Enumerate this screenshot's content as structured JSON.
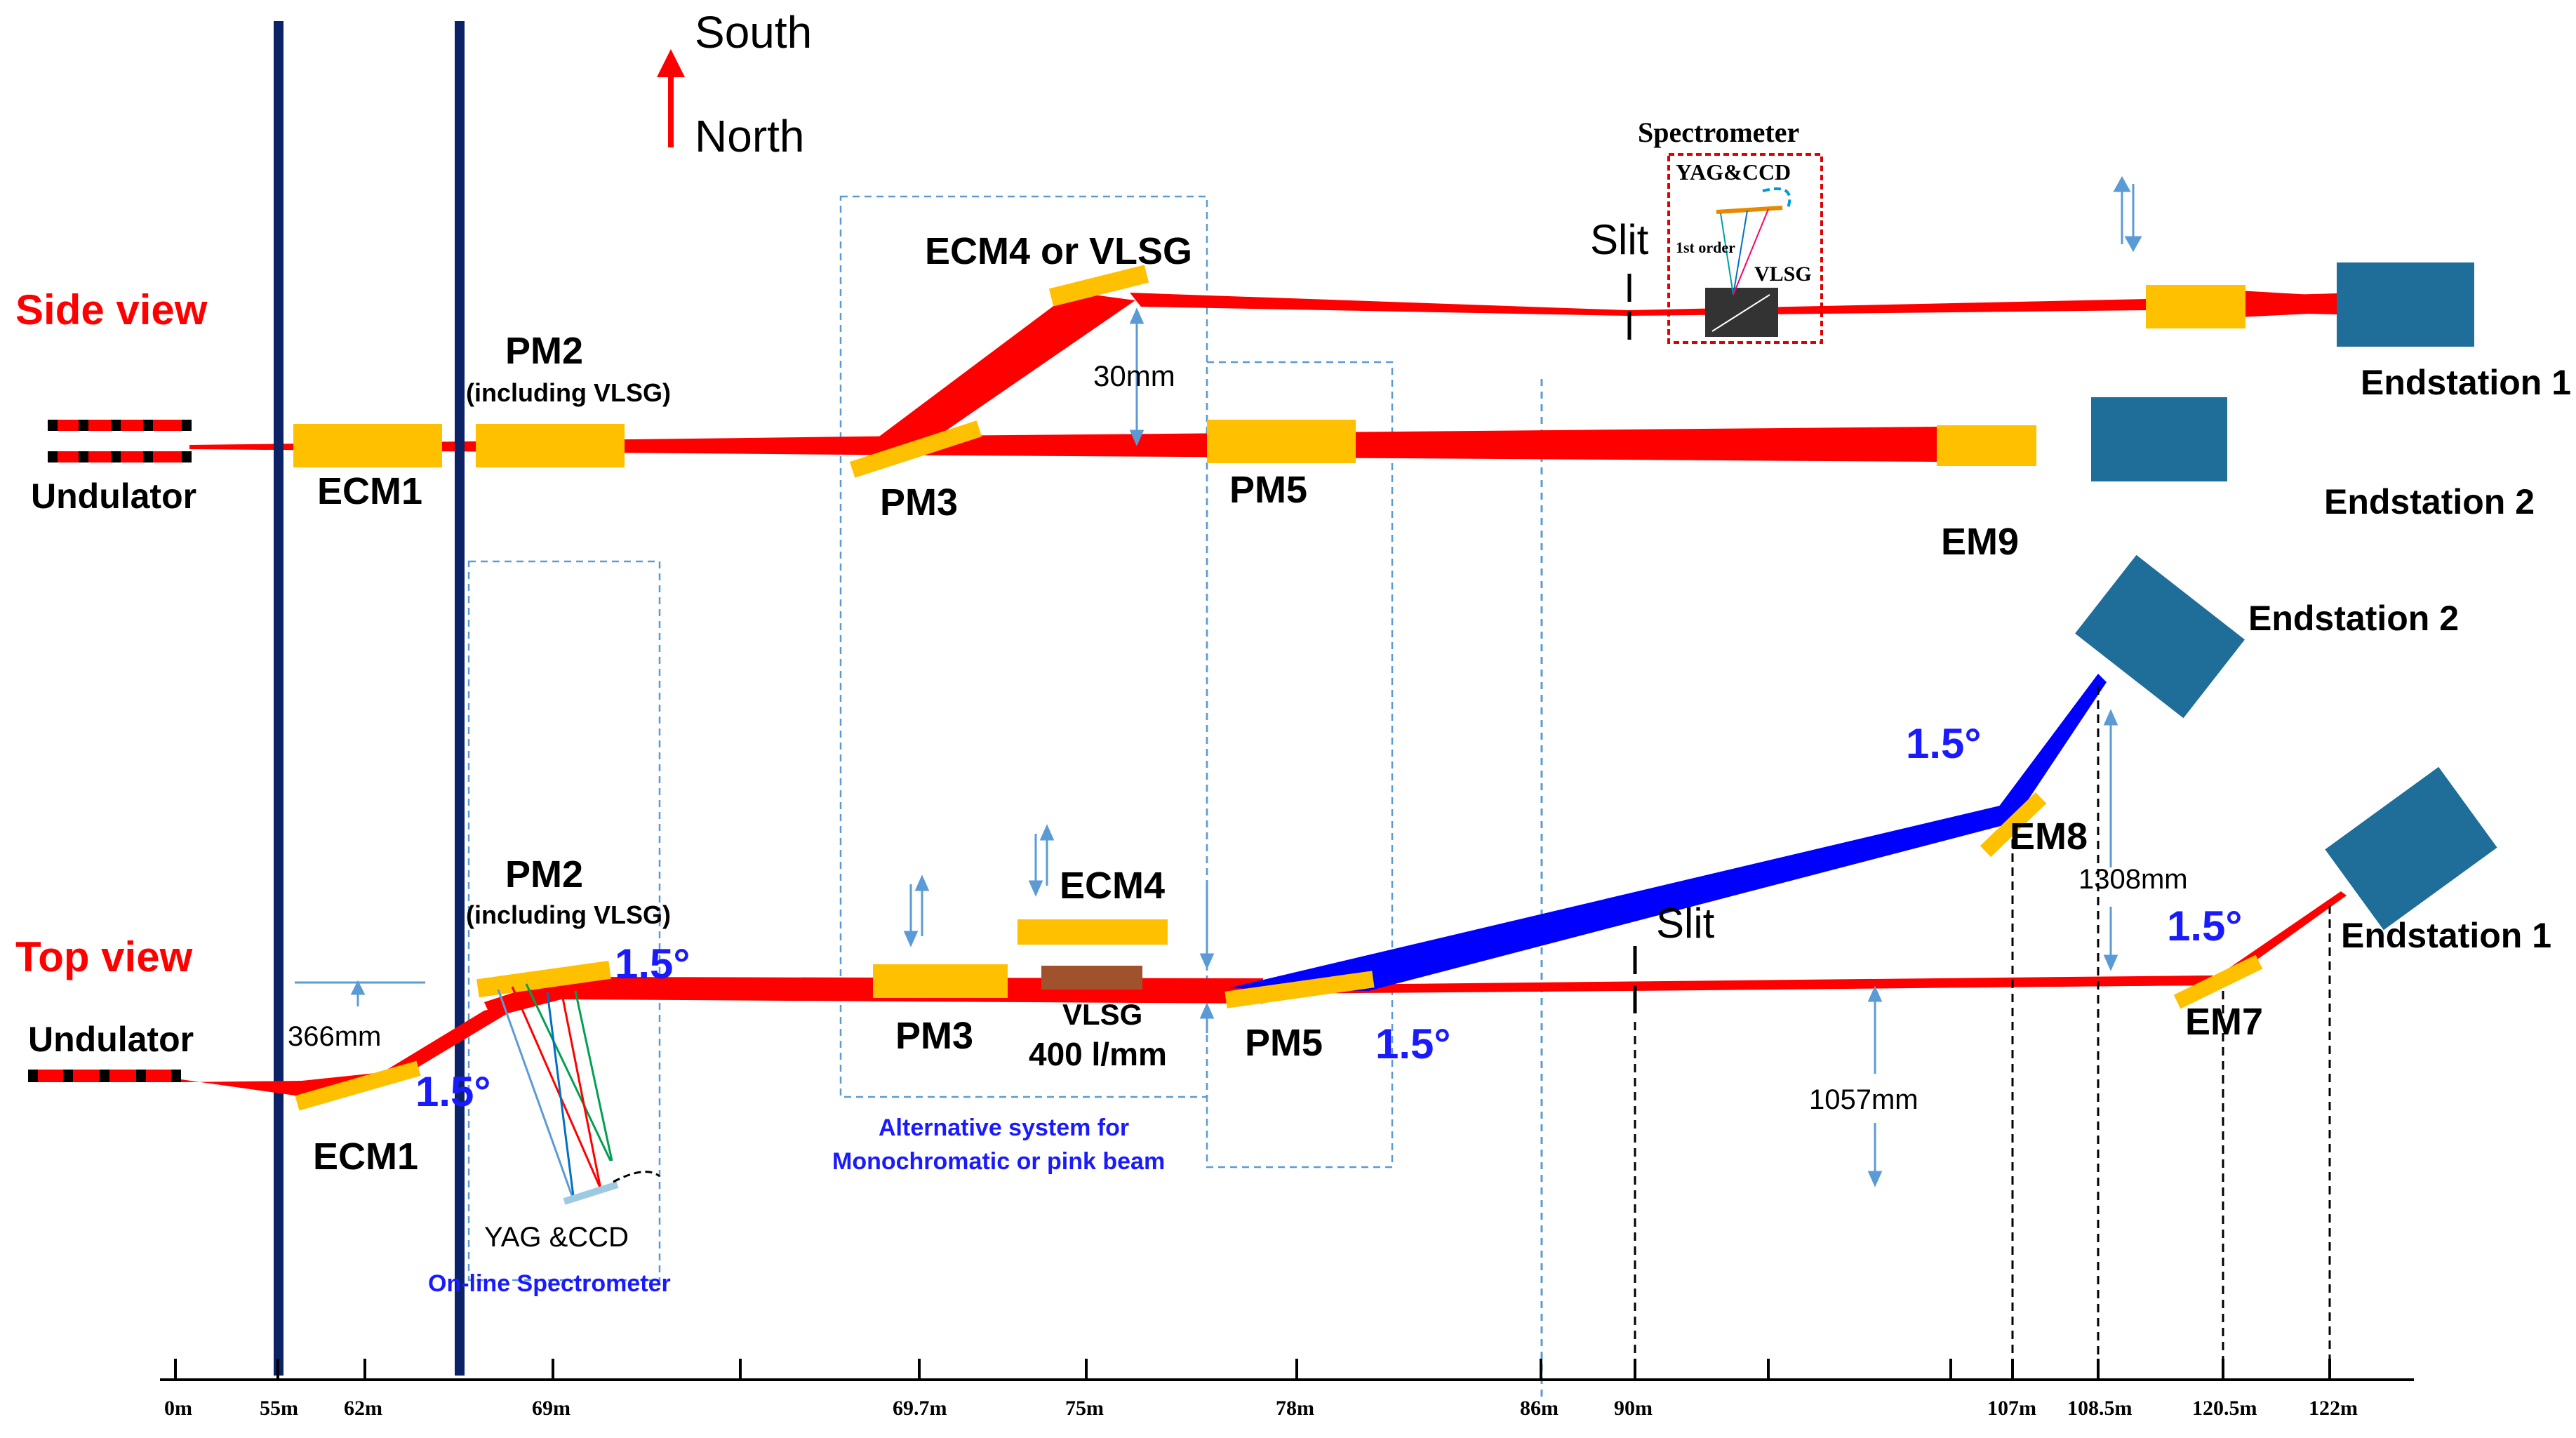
{
  "compass": {
    "south": "South",
    "north": "North"
  },
  "side_view": {
    "title": "Side view",
    "undulator": "Undulator",
    "ecm1": "ECM1",
    "pm2": "PM2",
    "pm2_sub": "(including VLSG)",
    "pm3": "PM3",
    "ecm4_vlsg": "ECM4 or VLSG",
    "offset": "30mm",
    "pm5": "PM5",
    "em9": "EM9",
    "slit": "Slit",
    "spectrometer": "Spectrometer",
    "yag_ccd": "YAG&CCD",
    "first_order": "1st order",
    "vlsg": "VLSG",
    "endstation1": "Endstation 1",
    "endstation2": "Endstation 2"
  },
  "top_view": {
    "title": "Top view",
    "undulator": "Undulator",
    "ecm1": "ECM1",
    "offset_366": "366mm",
    "angle": "1.5°",
    "pm2": "PM2",
    "pm2_sub": "(including VLSG)",
    "yag_ccd": "YAG &CCD",
    "online_spectrometer": "On-line Spectrometer",
    "pm3": "PM3",
    "ecm4": "ECM4",
    "vlsg": "VLSG",
    "vlsg_density": "400 l/mm",
    "alt_system_1": "Alternative system for",
    "alt_system_2": "Monochromatic or pink beam",
    "pm5": "PM5",
    "slit": "Slit",
    "offset_1057": "1057mm",
    "offset_1308": "1308mm",
    "em7": "EM7",
    "em8": "EM8",
    "endstation1": "Endstation 1",
    "endstation2": "Endstation 2"
  },
  "axis_ticks": [
    "0m",
    "55m",
    "62m",
    "69m",
    "69.7m",
    "75m",
    "78m",
    "86m",
    "90m",
    "107m",
    "108.5m",
    "120.5m",
    "122m"
  ],
  "colors": {
    "beam_red": "#ff0000",
    "beam_blue": "#0000ff",
    "optic_yellow": "#ffc000",
    "endstation": "#1f6e9a",
    "wall_navy": "#0b2366",
    "dim_blue": "#5b9bd5",
    "grating_brown": "#a0522d"
  }
}
